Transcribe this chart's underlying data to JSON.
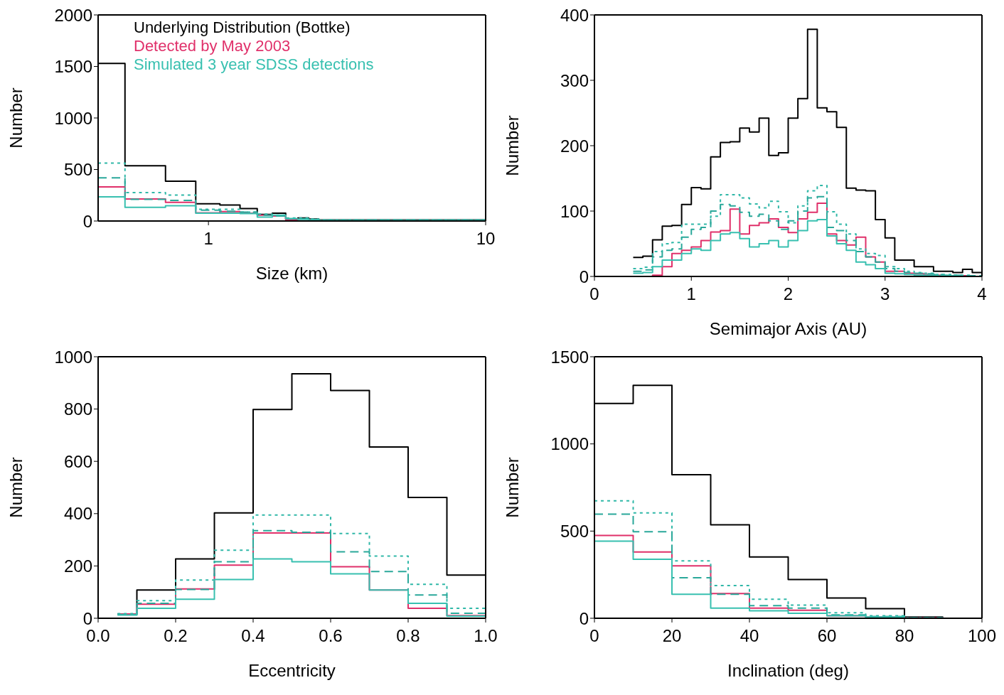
{
  "chart_data": [
    {
      "type": "histogram",
      "xlabel": "Size (km)",
      "ylabel": "Number",
      "log": "x",
      "xlim": [
        0.4,
        10
      ],
      "xticks": [
        1,
        10
      ],
      "ylim": [
        0,
        2000
      ],
      "yticks": [
        0,
        500,
        1000,
        1500,
        2000
      ],
      "legend": "top left",
      "bins": [
        0.4,
        0.5,
        0.7,
        0.9,
        1.1,
        1.3,
        1.5,
        1.7,
        1.9,
        2.1,
        2.3,
        2.5,
        10
      ],
      "series": [
        {
          "name": "Underlying Distribution (Bottke)",
          "color": "#000000",
          "line_style": "solid",
          "values": [
            1530,
            537,
            387,
            168,
            156,
            120,
            63,
            76,
            19,
            29,
            19,
            10
          ]
        },
        {
          "name": "Detected by May 2003",
          "color": "#e0306a",
          "line_style": "solid",
          "values": [
            331,
            213,
            181,
            80,
            91,
            76,
            57,
            48,
            10,
            19,
            10,
            4
          ]
        },
        {
          "color": "#30b8a8",
          "line_style": "dotted",
          "values": [
            562,
            276,
            251,
            114,
            114,
            86,
            67,
            57,
            29,
            29,
            19,
            10
          ]
        },
        {
          "color": "#2aa89a",
          "line_style": "dashed",
          "values": [
            419,
            210,
            200,
            105,
            95,
            86,
            57,
            48,
            23,
            23,
            15,
            8
          ]
        },
        {
          "name": "Simulated 3 year SDSS detections",
          "color": "#38c0b0",
          "line_style": "solid",
          "values": [
            234,
            133,
            149,
            76,
            76,
            72,
            38,
            57,
            23,
            15,
            10,
            6
          ]
        }
      ]
    },
    {
      "type": "histogram",
      "xlabel": "Semimajor Axis (AU)",
      "ylabel": "Number",
      "xlim": [
        0,
        4
      ],
      "xticks": [
        0,
        1,
        2,
        3,
        4
      ],
      "ylim": [
        0,
        400
      ],
      "yticks": [
        0,
        100,
        200,
        300,
        400
      ],
      "bins": [
        0.4,
        0.5,
        0.6,
        0.7,
        0.8,
        0.9,
        1.0,
        1.1,
        1.2,
        1.3,
        1.4,
        1.5,
        1.6,
        1.7,
        1.8,
        1.9,
        2.0,
        2.1,
        2.2,
        2.3,
        2.4,
        2.5,
        2.6,
        2.7,
        2.8,
        2.9,
        3.0,
        3.1,
        3.2,
        3.3,
        3.4,
        3.5,
        3.6,
        3.7,
        3.8,
        3.9,
        4.0
      ],
      "series": [
        {
          "color": "#000000",
          "line_style": "solid",
          "values": [
            29,
            31,
            56,
            77,
            78,
            110,
            136,
            134,
            183,
            205,
            206,
            227,
            221,
            242,
            185,
            189,
            242,
            272,
            378,
            258,
            252,
            228,
            135,
            132,
            131,
            87,
            59,
            25,
            25,
            15,
            15,
            8,
            8,
            6,
            11,
            6
          ]
        },
        {
          "color": "#e0306a",
          "line_style": "solid",
          "values": [
            0,
            0,
            2,
            15,
            35,
            40,
            45,
            55,
            68,
            70,
            103,
            65,
            78,
            82,
            88,
            75,
            67,
            88,
            98,
            112,
            65,
            55,
            48,
            60,
            30,
            22,
            8,
            8,
            5,
            4,
            3,
            2,
            1,
            1,
            1,
            0
          ]
        },
        {
          "color": "#30b8a8",
          "line_style": "dotted",
          "values": [
            12,
            14,
            38,
            50,
            52,
            80,
            80,
            80,
            92,
            125,
            125,
            120,
            111,
            105,
            115,
            99,
            82,
            108,
            131,
            139,
            99,
            80,
            65,
            42,
            35,
            32,
            15,
            12,
            8,
            6,
            5,
            3,
            3,
            2,
            2,
            1
          ]
        },
        {
          "color": "#2aa89a",
          "line_style": "dashed",
          "values": [
            8,
            10,
            30,
            40,
            42,
            60,
            72,
            75,
            100,
            110,
            108,
            98,
            92,
            95,
            85,
            72,
            85,
            100,
            120,
            122,
            75,
            70,
            55,
            38,
            30,
            22,
            12,
            8,
            6,
            5,
            4,
            3,
            2,
            2,
            1,
            1
          ]
        },
        {
          "color": "#38c0b0",
          "line_style": "solid",
          "values": [
            5,
            6,
            15,
            25,
            25,
            35,
            42,
            40,
            55,
            65,
            67,
            58,
            45,
            50,
            55,
            45,
            55,
            70,
            85,
            87,
            62,
            50,
            40,
            22,
            18,
            12,
            5,
            4,
            3,
            2,
            2,
            1,
            1,
            1,
            0,
            0
          ]
        }
      ]
    },
    {
      "type": "histogram",
      "xlabel": "Eccentricity",
      "ylabel": "Number",
      "xlim": [
        0,
        1
      ],
      "xticks": [
        {
          "value": 0,
          "label": "0.0"
        },
        0.2,
        0.4,
        0.6,
        0.8,
        {
          "value": 1,
          "label": "1.0"
        }
      ],
      "ylim": [
        0,
        1000
      ],
      "yticks": [
        0,
        200,
        400,
        600,
        800,
        1000
      ],
      "bins": [
        0.05,
        0.1,
        0.2,
        0.3,
        0.4,
        0.5,
        0.6,
        0.7,
        0.8,
        0.9,
        1.0
      ],
      "series": [
        {
          "color": "#000000",
          "line_style": "solid",
          "values": [
            16,
            108,
            227,
            403,
            798,
            935,
            871,
            655,
            462,
            165
          ]
        },
        {
          "color": "#e0306a",
          "line_style": "solid",
          "values": [
            16,
            54,
            112,
            203,
            326,
            326,
            197,
            108,
            38,
            10
          ]
        },
        {
          "color": "#30b8a8",
          "line_style": "dotted",
          "values": [
            18,
            67,
            146,
            260,
            395,
            395,
            324,
            238,
            130,
            38
          ]
        },
        {
          "color": "#2aa89a",
          "line_style": "dashed",
          "values": [
            14,
            57,
            110,
            216,
            335,
            329,
            254,
            179,
            89,
            19
          ]
        },
        {
          "color": "#38c0b0",
          "line_style": "solid",
          "values": [
            12,
            38,
            73,
            148,
            227,
            216,
            170,
            108,
            57,
            8
          ]
        }
      ]
    },
    {
      "type": "histogram",
      "xlabel": "Inclination (deg)",
      "ylabel": "Number",
      "xlim": [
        0,
        100
      ],
      "xticks": [
        0,
        20,
        40,
        60,
        80,
        100
      ],
      "ylim": [
        0,
        1500
      ],
      "yticks": [
        0,
        500,
        1000,
        1500
      ],
      "bins": [
        0,
        10,
        20,
        30,
        40,
        50,
        60,
        70,
        80,
        90
      ],
      "series": [
        {
          "color": "#000000",
          "line_style": "solid",
          "values": [
            1232,
            1336,
            823,
            536,
            352,
            222,
            116,
            55,
            7
          ]
        },
        {
          "color": "#e0306a",
          "line_style": "solid",
          "values": [
            475,
            380,
            301,
            142,
            58,
            46,
            14,
            7,
            3
          ]
        },
        {
          "color": "#30b8a8",
          "line_style": "dotted",
          "values": [
            674,
            604,
            329,
            188,
            109,
            75,
            32,
            14,
            3
          ]
        },
        {
          "color": "#2aa89a",
          "line_style": "dashed",
          "values": [
            597,
            496,
            232,
            138,
            72,
            58,
            19,
            10,
            3
          ]
        },
        {
          "color": "#38c0b0",
          "line_style": "solid",
          "values": [
            442,
            338,
            138,
            58,
            43,
            29,
            14,
            7,
            0
          ]
        }
      ]
    }
  ]
}
